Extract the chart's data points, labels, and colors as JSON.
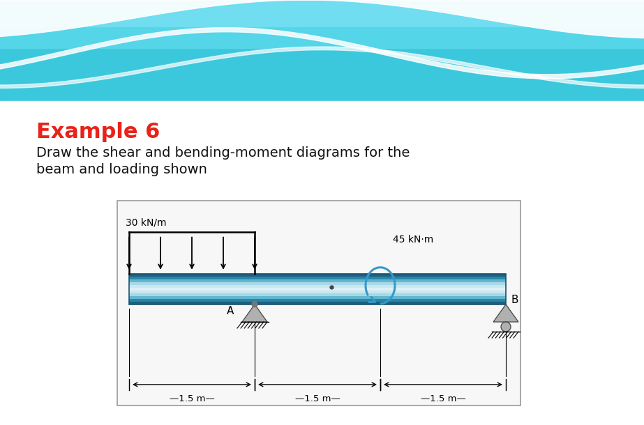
{
  "title": "Example 6",
  "subtitle_line1": "Draw the shear and bending-moment diagrams for the",
  "subtitle_line2": "beam and loading shown",
  "title_color": "#e8231a",
  "subtitle_color": "#111111",
  "bg_color": "#ffffff",
  "wave_bg": "#4ecde0",
  "dist_load_label": "30 kN/m",
  "moment_label": "45 kN·m",
  "label_A": "A",
  "label_B": "B",
  "dim_label1": "—1.5 m—",
  "dim_label2": "—1.5 m—",
  "dim_label3": "—1.5 m—",
  "beam_grad": [
    "#1a6080",
    "#2a85a8",
    "#60b8d0",
    "#a8d8e8",
    "#c8e8f0",
    "#dff0f8",
    "#c8e8f0",
    "#a8d8e8",
    "#60b8d0",
    "#2a85a8",
    "#1a6080"
  ],
  "moment_color": "#3399cc",
  "support_color": "#b0b0b0",
  "box_edge": "#999999"
}
